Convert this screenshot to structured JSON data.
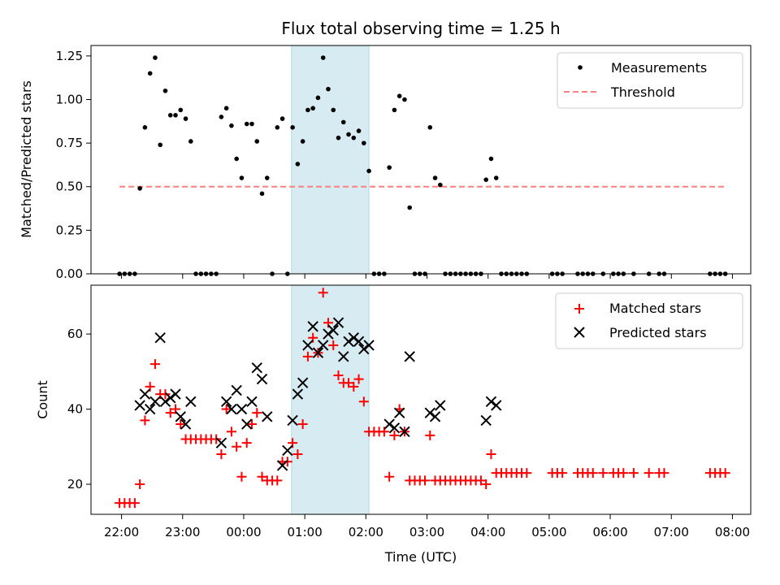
{
  "chart_data": [
    {
      "type": "scatter",
      "title": "Flux total observing time = 1.25 h",
      "xlabel": "",
      "ylabel": "Matched/Predicted stars",
      "x_unit": "hour (UTC, continuing past midnight)",
      "xlim": [
        21.5,
        8.3
      ],
      "ylim": [
        0.0,
        1.31
      ],
      "yticks": [
        "0.00",
        "0.25",
        "0.50",
        "0.75",
        "1.00",
        "1.25"
      ],
      "ytick_values": [
        0,
        0.25,
        0.5,
        0.75,
        1.0,
        1.25
      ],
      "xticks_visible_labels": false,
      "highlight_span": {
        "x0": "00:47",
        "x1": "02:03",
        "color": "#add8e6"
      },
      "legend": {
        "placement": "top-right",
        "entries": [
          "Measurements",
          "Threshold"
        ]
      },
      "series": [
        {
          "name": "Measurements",
          "marker": "dot",
          "color": "#000000",
          "points": [
            [
              "21:58",
              0
            ],
            [
              "22:03",
              0
            ],
            [
              "22:08",
              0
            ],
            [
              "22:13",
              0
            ],
            [
              "22:18",
              0.49
            ],
            [
              "22:23",
              0.84
            ],
            [
              "22:28",
              1.15
            ],
            [
              "22:33",
              1.24
            ],
            [
              "22:38",
              0.74
            ],
            [
              "22:43",
              1.05
            ],
            [
              "22:48",
              0.91
            ],
            [
              "22:53",
              0.91
            ],
            [
              "22:58",
              0.94
            ],
            [
              "23:03",
              0.89
            ],
            [
              "23:08",
              0.76
            ],
            [
              "23:13",
              0
            ],
            [
              "23:18",
              0
            ],
            [
              "23:23",
              0
            ],
            [
              "23:28",
              0
            ],
            [
              "23:33",
              0
            ],
            [
              "23:38",
              0.9
            ],
            [
              "23:43",
              0.95
            ],
            [
              "23:48",
              0.85
            ],
            [
              "23:53",
              0.66
            ],
            [
              "23:58",
              0.55
            ],
            [
              "00:03",
              0.86
            ],
            [
              "00:08",
              0.86
            ],
            [
              "00:13",
              0.76
            ],
            [
              "00:18",
              0.46
            ],
            [
              "00:23",
              0.55
            ],
            [
              "00:28",
              0
            ],
            [
              "00:33",
              0.84
            ],
            [
              "00:38",
              0.89
            ],
            [
              "00:43",
              0
            ],
            [
              "00:48",
              0.84
            ],
            [
              "00:53",
              0.63
            ],
            [
              "00:58",
              0.76
            ],
            [
              "01:03",
              0.94
            ],
            [
              "01:08",
              0.95
            ],
            [
              "01:13",
              1.01
            ],
            [
              "01:18",
              1.24
            ],
            [
              "01:23",
              1.06
            ],
            [
              "01:28",
              0.94
            ],
            [
              "01:33",
              0.78
            ],
            [
              "01:38",
              0.87
            ],
            [
              "01:43",
              0.8
            ],
            [
              "01:48",
              0.78
            ],
            [
              "01:53",
              0.82
            ],
            [
              "01:58",
              0.75
            ],
            [
              "02:03",
              0.59
            ],
            [
              "02:08",
              0
            ],
            [
              "02:13",
              0
            ],
            [
              "02:18",
              0
            ],
            [
              "02:23",
              0.61
            ],
            [
              "02:28",
              0.94
            ],
            [
              "02:33",
              1.02
            ],
            [
              "02:38",
              1.0
            ],
            [
              "02:43",
              0.38
            ],
            [
              "02:48",
              0
            ],
            [
              "02:53",
              0
            ],
            [
              "02:58",
              0
            ],
            [
              "03:03",
              0.84
            ],
            [
              "03:08",
              0.55
            ],
            [
              "03:13",
              0.51
            ],
            [
              "03:18",
              0
            ],
            [
              "03:23",
              0
            ],
            [
              "03:28",
              0
            ],
            [
              "03:33",
              0
            ],
            [
              "03:38",
              0
            ],
            [
              "03:43",
              0
            ],
            [
              "03:48",
              0
            ],
            [
              "03:53",
              0
            ],
            [
              "03:58",
              0.54
            ],
            [
              "04:03",
              0.66
            ],
            [
              "04:08",
              0.55
            ],
            [
              "04:13",
              0
            ],
            [
              "04:18",
              0
            ],
            [
              "04:23",
              0
            ],
            [
              "04:28",
              0
            ],
            [
              "04:33",
              0
            ],
            [
              "04:38",
              0
            ],
            [
              "05:03",
              0
            ],
            [
              "05:08",
              0
            ],
            [
              "05:13",
              0
            ],
            [
              "05:28",
              0
            ],
            [
              "05:33",
              0
            ],
            [
              "05:38",
              0
            ],
            [
              "05:43",
              0
            ],
            [
              "05:53",
              0
            ],
            [
              "06:03",
              0
            ],
            [
              "06:08",
              0
            ],
            [
              "06:13",
              0
            ],
            [
              "06:23",
              0
            ],
            [
              "06:38",
              0
            ],
            [
              "06:48",
              0
            ],
            [
              "06:53",
              0
            ],
            [
              "07:38",
              0
            ],
            [
              "07:43",
              0
            ],
            [
              "07:48",
              0
            ],
            [
              "07:53",
              0
            ]
          ]
        },
        {
          "name": "Threshold",
          "style": "dashed",
          "color": "#ff7f7f",
          "points": [
            [
              "21:58",
              0.5
            ],
            [
              "07:53",
              0.5
            ]
          ]
        }
      ]
    },
    {
      "type": "scatter",
      "title": "",
      "xlabel": "Time (UTC)",
      "ylabel": "Count",
      "xlim": [
        21.5,
        8.3
      ],
      "ylim": [
        12,
        73
      ],
      "yticks": [
        "20",
        "40",
        "60"
      ],
      "ytick_values": [
        20,
        40,
        60
      ],
      "xticks": [
        "22:00",
        "23:00",
        "00:00",
        "01:00",
        "02:00",
        "03:00",
        "04:00",
        "05:00",
        "06:00",
        "07:00",
        "08:00"
      ],
      "highlight_span": {
        "x0": "00:47",
        "x1": "02:03",
        "color": "#add8e6"
      },
      "legend": {
        "placement": "top-right",
        "entries": [
          "Matched stars",
          "Predicted stars"
        ]
      },
      "series": [
        {
          "name": "Matched stars",
          "marker": "plus",
          "color": "#ff0000",
          "points": [
            [
              "21:58",
              15
            ],
            [
              "22:03",
              15
            ],
            [
              "22:08",
              15
            ],
            [
              "22:13",
              15
            ],
            [
              "22:18",
              20
            ],
            [
              "22:23",
              37
            ],
            [
              "22:28",
              46
            ],
            [
              "22:33",
              52
            ],
            [
              "22:38",
              44
            ],
            [
              "22:43",
              44
            ],
            [
              "22:48",
              39
            ],
            [
              "22:53",
              40
            ],
            [
              "22:58",
              36
            ],
            [
              "23:03",
              32
            ],
            [
              "23:08",
              32
            ],
            [
              "23:13",
              32
            ],
            [
              "23:18",
              32
            ],
            [
              "23:23",
              32
            ],
            [
              "23:28",
              32
            ],
            [
              "23:33",
              32
            ],
            [
              "23:38",
              28
            ],
            [
              "23:43",
              40
            ],
            [
              "23:48",
              34
            ],
            [
              "23:53",
              30
            ],
            [
              "23:58",
              22
            ],
            [
              "00:03",
              31
            ],
            [
              "00:08",
              36
            ],
            [
              "00:13",
              39
            ],
            [
              "00:18",
              22
            ],
            [
              "00:23",
              21
            ],
            [
              "00:28",
              21
            ],
            [
              "00:33",
              21
            ],
            [
              "00:38",
              26
            ],
            [
              "00:43",
              26
            ],
            [
              "00:48",
              31
            ],
            [
              "00:53",
              28
            ],
            [
              "00:58",
              36
            ],
            [
              "01:03",
              54
            ],
            [
              "01:08",
              59
            ],
            [
              "01:13",
              55
            ],
            [
              "01:18",
              71
            ],
            [
              "01:23",
              63
            ],
            [
              "01:28",
              57
            ],
            [
              "01:33",
              49
            ],
            [
              "01:38",
              47
            ],
            [
              "01:43",
              47
            ],
            [
              "01:48",
              46
            ],
            [
              "01:53",
              48
            ],
            [
              "01:58",
              42
            ],
            [
              "02:03",
              34
            ],
            [
              "02:08",
              34
            ],
            [
              "02:13",
              34
            ],
            [
              "02:18",
              34
            ],
            [
              "02:23",
              22
            ],
            [
              "02:28",
              33
            ],
            [
              "02:33",
              40
            ],
            [
              "02:38",
              34
            ],
            [
              "02:43",
              21
            ],
            [
              "02:48",
              21
            ],
            [
              "02:53",
              21
            ],
            [
              "02:58",
              21
            ],
            [
              "03:03",
              33
            ],
            [
              "03:08",
              21
            ],
            [
              "03:13",
              21
            ],
            [
              "03:18",
              21
            ],
            [
              "03:23",
              21
            ],
            [
              "03:28",
              21
            ],
            [
              "03:33",
              21
            ],
            [
              "03:38",
              21
            ],
            [
              "03:43",
              21
            ],
            [
              "03:48",
              21
            ],
            [
              "03:53",
              21
            ],
            [
              "03:58",
              20
            ],
            [
              "04:03",
              28
            ],
            [
              "04:08",
              23
            ],
            [
              "04:13",
              23
            ],
            [
              "04:18",
              23
            ],
            [
              "04:23",
              23
            ],
            [
              "04:28",
              23
            ],
            [
              "04:33",
              23
            ],
            [
              "04:38",
              23
            ],
            [
              "05:03",
              23
            ],
            [
              "05:08",
              23
            ],
            [
              "05:13",
              23
            ],
            [
              "05:28",
              23
            ],
            [
              "05:33",
              23
            ],
            [
              "05:38",
              23
            ],
            [
              "05:43",
              23
            ],
            [
              "05:53",
              23
            ],
            [
              "06:03",
              23
            ],
            [
              "06:08",
              23
            ],
            [
              "06:13",
              23
            ],
            [
              "06:23",
              23
            ],
            [
              "06:38",
              23
            ],
            [
              "06:48",
              23
            ],
            [
              "06:53",
              23
            ],
            [
              "07:38",
              23
            ],
            [
              "07:43",
              23
            ],
            [
              "07:48",
              23
            ],
            [
              "07:53",
              23
            ]
          ]
        },
        {
          "name": "Predicted stars",
          "marker": "x",
          "color": "#000000",
          "points": [
            [
              "22:18",
              41
            ],
            [
              "22:23",
              44
            ],
            [
              "22:28",
              40
            ],
            [
              "22:33",
              42
            ],
            [
              "22:38",
              59
            ],
            [
              "22:43",
              42
            ],
            [
              "22:48",
              43
            ],
            [
              "22:53",
              44
            ],
            [
              "22:58",
              38
            ],
            [
              "23:03",
              36
            ],
            [
              "23:08",
              42
            ],
            [
              "23:38",
              31
            ],
            [
              "23:43",
              42
            ],
            [
              "23:48",
              40
            ],
            [
              "23:53",
              45
            ],
            [
              "23:58",
              40
            ],
            [
              "00:03",
              36
            ],
            [
              "00:08",
              42
            ],
            [
              "00:13",
              51
            ],
            [
              "00:18",
              48
            ],
            [
              "00:23",
              38
            ],
            [
              "00:38",
              25
            ],
            [
              "00:43",
              29
            ],
            [
              "00:48",
              37
            ],
            [
              "00:53",
              44
            ],
            [
              "00:58",
              47
            ],
            [
              "01:03",
              57
            ],
            [
              "01:08",
              62
            ],
            [
              "01:13",
              55
            ],
            [
              "01:18",
              57
            ],
            [
              "01:23",
              60
            ],
            [
              "01:28",
              61
            ],
            [
              "01:33",
              63
            ],
            [
              "01:38",
              54
            ],
            [
              "01:43",
              58
            ],
            [
              "01:48",
              59
            ],
            [
              "01:53",
              58
            ],
            [
              "01:58",
              56
            ],
            [
              "02:03",
              57
            ],
            [
              "02:23",
              36
            ],
            [
              "02:28",
              35
            ],
            [
              "02:33",
              39
            ],
            [
              "02:38",
              34
            ],
            [
              "02:43",
              54
            ],
            [
              "03:03",
              39
            ],
            [
              "03:08",
              38
            ],
            [
              "03:13",
              41
            ],
            [
              "03:58",
              37
            ],
            [
              "04:03",
              42
            ],
            [
              "04:08",
              41
            ]
          ]
        }
      ]
    }
  ]
}
